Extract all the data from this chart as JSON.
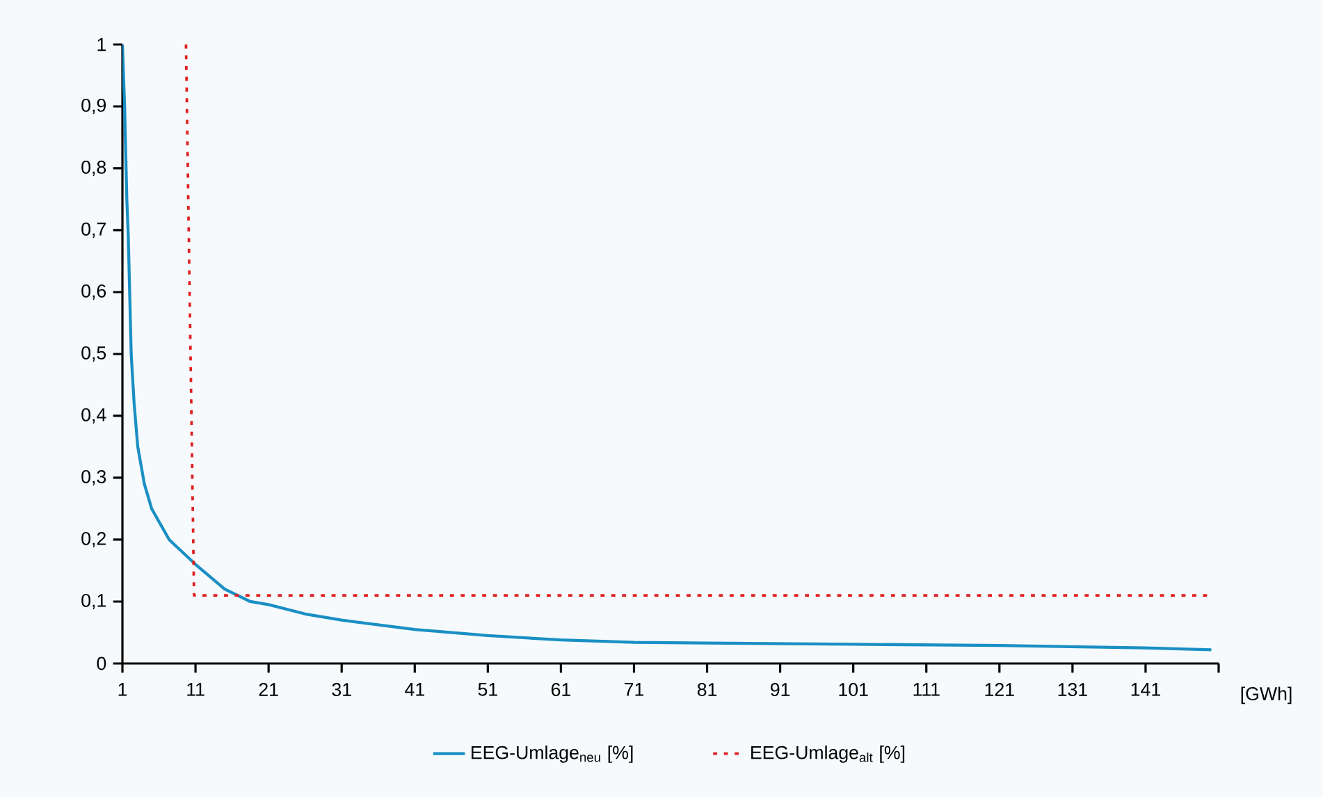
{
  "chart_data": {
    "type": "line",
    "xlabel": "[GWh]",
    "xlim": [
      1,
      151
    ],
    "xticks": [
      1,
      11,
      21,
      31,
      41,
      51,
      61,
      71,
      81,
      91,
      101,
      111,
      121,
      131,
      141,
      {
        "value": 151,
        "label": null
      }
    ],
    "ylim": [
      0,
      1
    ],
    "yticks": [
      0,
      {
        "value": 0.1,
        "label": "0,1"
      },
      {
        "value": 0.2,
        "label": "0,2"
      },
      {
        "value": 0.3,
        "label": "0,3"
      },
      {
        "value": 0.4,
        "label": "0,4"
      },
      {
        "value": 0.5,
        "label": "0,5"
      },
      {
        "value": 0.6,
        "label": "0,6"
      },
      {
        "value": 0.7,
        "label": "0,7"
      },
      {
        "value": 0.8,
        "label": "0,8"
      },
      {
        "value": 0.9,
        "label": "0,9"
      },
      1
    ],
    "grid": false,
    "legend": "bottom",
    "marker": "none",
    "series": [
      {
        "name": "EEG-Umlage$_{neu}$ [%]",
        "color": "#1a8fc4",
        "line_style": "solid",
        "x": [
          1,
          1.3,
          1.6,
          1.8,
          2.2,
          2.6,
          3.1,
          4,
          5,
          7.4,
          11,
          15,
          18.5,
          21,
          26,
          31,
          41,
          51,
          61,
          71,
          81,
          101,
          121,
          141,
          150
        ],
        "values": [
          1,
          0.9,
          0.75,
          0.69,
          0.5,
          0.42,
          0.35,
          0.29,
          0.25,
          0.2,
          0.16,
          0.12,
          0.1,
          0.095,
          0.08,
          0.07,
          0.055,
          0.045,
          0.038,
          0.034,
          0.033,
          0.031,
          0.029,
          0.025,
          0.022
        ]
      },
      {
        "name": "EEG-Umlage$_{alt}$ [%]",
        "color": "#e02020",
        "line_style": "dotted",
        "x": [
          9.7,
          10.8,
          150
        ],
        "values": [
          1,
          0.11,
          0.11
        ]
      }
    ]
  }
}
